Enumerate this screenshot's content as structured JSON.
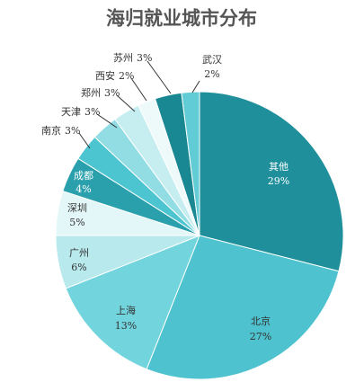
{
  "chart_data": {
    "type": "pie",
    "title": "海归就业城市分布",
    "categories": [
      "其他",
      "北京",
      "上海",
      "广州",
      "深圳",
      "成都",
      "南京",
      "天津",
      "郑州",
      "西安",
      "苏州",
      "武汉"
    ],
    "values": [
      29,
      27,
      13,
      6,
      5,
      4,
      3,
      3,
      3,
      2,
      3,
      2
    ],
    "value_labels": [
      "29%",
      "27%",
      "13%",
      "6%",
      "5%",
      "4%",
      "3%",
      "3%",
      "3%",
      "2%",
      "3%",
      "2%"
    ],
    "colors": [
      "#1f8f9b",
      "#4ec3cf",
      "#72d4dd",
      "#b8e9ed",
      "#e4f7f8",
      "#2ba0ad",
      "#4dc5d1",
      "#92dde4",
      "#c6eef1",
      "#eef9fa",
      "#1a8893",
      "#62ccd6"
    ]
  }
}
